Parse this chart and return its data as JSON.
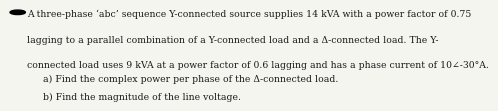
{
  "bullet_color": "#000000",
  "paragraph_lines": [
    "A three-phase ‘abc’ sequence Y-connected source supplies 14 kVA with a power factor of 0.75",
    "lagging to a parallel combination of a Y-connected load and a Δ-connected load. The Y-",
    "connected load uses 9 kVA at a power factor of 0.6 lagging and has a phase current of 10∠-30°A."
  ],
  "sub_items": [
    "a) Find the complex power per phase of the Δ-connected load.",
    "b) Find the magnitude of the line voltage."
  ],
  "text_color": "#1a1a1a",
  "background_color": "#f5f5f0",
  "font_size_main": 6.7,
  "font_size_sub": 6.7
}
